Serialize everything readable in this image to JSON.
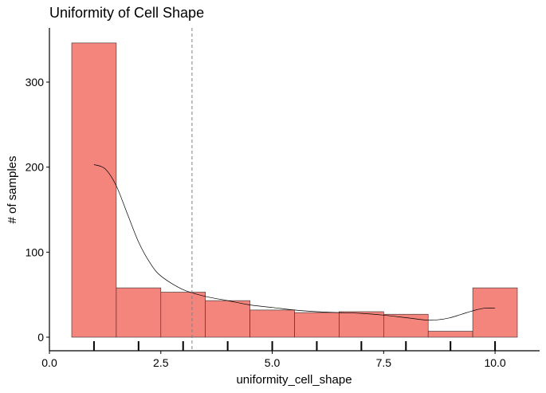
{
  "chart_data": {
    "type": "bar",
    "title": "Uniformity of Cell Shape",
    "xlabel": "uniformity_cell_shape",
    "ylabel": "# of samples",
    "xlim": [
      0,
      11.0
    ],
    "ylim": [
      0,
      360
    ],
    "x_ticks": [
      0.0,
      2.5,
      5.0,
      7.5,
      10.0
    ],
    "x_tick_labels": [
      "0.0",
      "2.5",
      "5.0",
      "7.5",
      "10.0"
    ],
    "y_ticks": [
      0,
      100,
      200,
      300
    ],
    "y_tick_labels": [
      "0",
      "100",
      "200",
      "300"
    ],
    "bins": [
      {
        "x0": 0.5,
        "x1": 1.5,
        "count": 346
      },
      {
        "x0": 1.5,
        "x1": 2.5,
        "count": 58
      },
      {
        "x0": 2.5,
        "x1": 3.5,
        "count": 53
      },
      {
        "x0": 3.5,
        "x1": 4.5,
        "count": 43
      },
      {
        "x0": 4.5,
        "x1": 5.5,
        "count": 32
      },
      {
        "x0": 5.5,
        "x1": 6.5,
        "count": 29
      },
      {
        "x0": 6.5,
        "x1": 7.5,
        "count": 30
      },
      {
        "x0": 7.5,
        "x1": 8.5,
        "count": 27
      },
      {
        "x0": 8.5,
        "x1": 9.5,
        "count": 7
      },
      {
        "x0": 9.5,
        "x1": 10.5,
        "count": 58
      }
    ],
    "density_curve": {
      "x": [
        1.0,
        1.25,
        1.5,
        1.75,
        2.0,
        2.25,
        2.5,
        3.0,
        3.5,
        4.0,
        4.5,
        5.0,
        5.5,
        6.0,
        6.5,
        7.0,
        7.5,
        8.0,
        8.5,
        8.8,
        9.0,
        9.25,
        9.5,
        9.75,
        10.0
      ],
      "y": [
        203,
        198,
        178,
        145,
        112,
        88,
        72,
        56,
        48,
        43,
        38,
        35,
        32,
        30,
        29,
        28,
        26,
        23,
        20,
        21,
        23,
        27,
        31,
        34,
        34
      ]
    },
    "mean_line_x": 3.2,
    "rug_x": [
      1,
      2,
      3,
      4,
      5,
      6,
      7,
      8,
      9,
      10
    ],
    "colors": {
      "bar_fill": "#F4857D",
      "bar_stroke": "#2b2b2b",
      "curve": "#000000",
      "mean_line": "#808080",
      "axis": "#000000"
    },
    "grid": false,
    "legend": "none"
  }
}
